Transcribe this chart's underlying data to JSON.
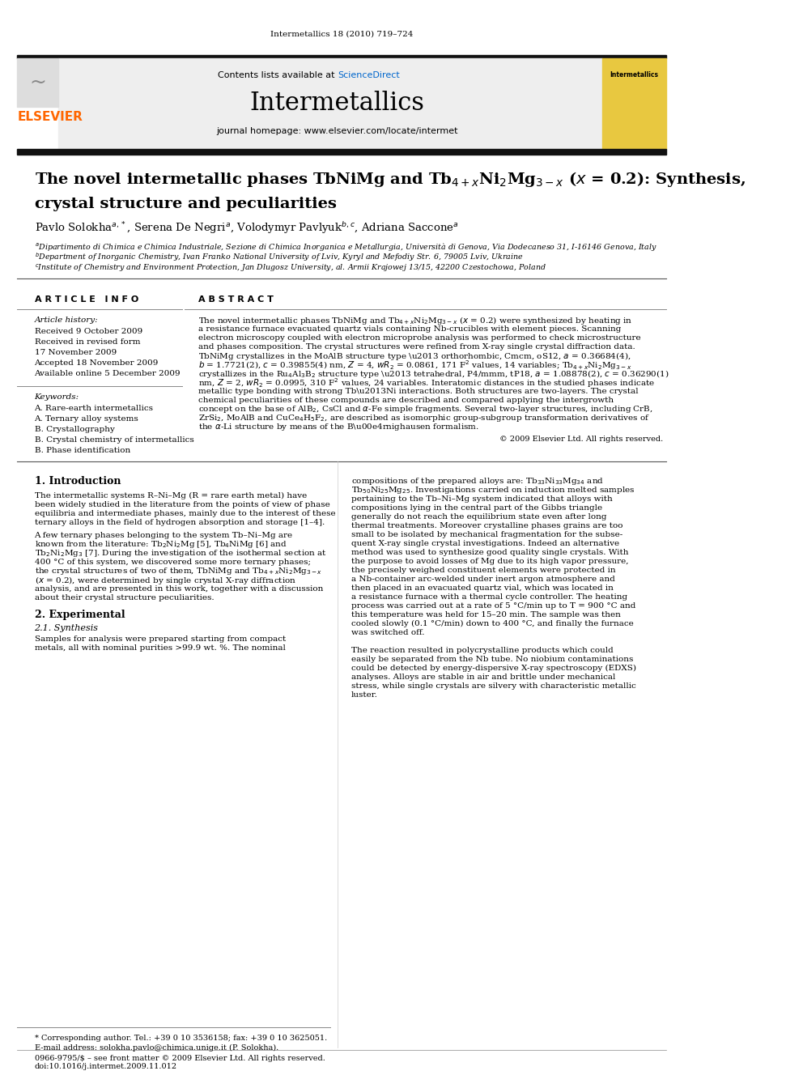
{
  "journal_header_text": "Intermetallics 18 (2010) 719–724",
  "contents_text": "Contents lists available at ScienceDirect",
  "sciencedirect_color": "#0066cc",
  "journal_name": "Intermetallics",
  "journal_homepage": "journal homepage: www.elsevier.com/locate/intermet",
  "elsevier_color": "#ff6600",
  "title_line1": "The novel intermetallic phases TbNiMg and Tb$_{4+x}$Ni$_2$Mg$_{3-x}$ ($x$ = 0.2): Synthesis,",
  "title_line2": "crystal structure and peculiarities",
  "authors_line": "Pavlo Solokha$^{a,*}$, Serena De Negri$^{a}$, Volodymyr Pavlyuk$^{b,c}$, Adriana Saccone$^{a}$",
  "affil_a": "$^{a}$Dipartimento di Chimica e Chimica Industriale, Sezione di Chimica Inorganica e Metallurgia, Università di Genova, Via Dodecaneso 31, I-16146 Genova, Italy",
  "affil_b": "$^{b}$Department of Inorganic Chemistry, Ivan Franko National University of Lviv, Kyryl and Mefodiy Str. 6, 79005 Lviv, Ukraine",
  "affil_c": "$^{c}$Institute of Chemistry and Environment Protection, Jan Dlugosz University, al. Armii Krajowej 13/15, 42200 Czestochowa, Poland",
  "article_info_title": "A R T I C L E   I N F O",
  "article_history_label": "Article history:",
  "received1": "Received 9 October 2009",
  "received2": "Received in revised form",
  "received2b": "17 November 2009",
  "accepted": "Accepted 18 November 2009",
  "available": "Available online 5 December 2009",
  "keywords_label": "Keywords:",
  "kw1": "A. Rare-earth intermetallics",
  "kw2": "A. Ternary alloy systems",
  "kw3": "B. Crystallography",
  "kw4": "B. Crystal chemistry of intermetallics",
  "kw5": "B. Phase identification",
  "abstract_title": "A B S T R A C T",
  "copyright_text": "© 2009 Elsevier Ltd. All rights reserved.",
  "intro_title": "1. Introduction",
  "section2_title": "2. Experimental",
  "section21_title": "2.1. Synthesis",
  "footnote_star": "* Corresponding author. Tel.: +39 0 10 3536158; fax: +39 0 10 3625051.",
  "footnote_email": "E-mail address: solokha.pavlo@chimica.unige.it (P. Solokha).",
  "footer_issn": "0966-9795/$ – see front matter © 2009 Elsevier Ltd. All rights reserved.",
  "footer_doi": "doi:10.1016/j.intermet.2009.11.012",
  "bg_color": "#ffffff",
  "text_color": "#000000",
  "header_bg": "#eeeeee",
  "black_bar_color": "#111111",
  "separator_color": "#555555",
  "elsevier_orange": "#ff6600"
}
